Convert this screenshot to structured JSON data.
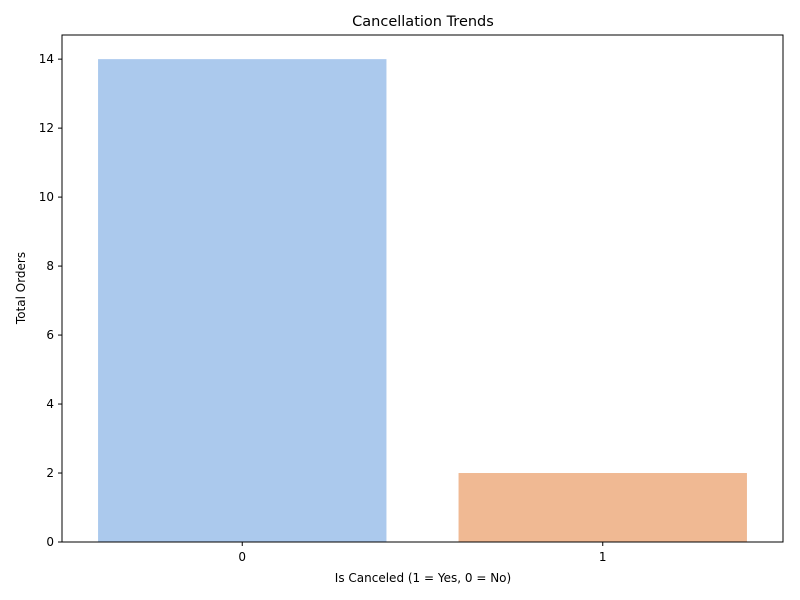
{
  "chart_data": {
    "type": "bar",
    "title": "Cancellation Trends",
    "xlabel": "Is Canceled (1 = Yes, 0 = No)",
    "ylabel": "Total Orders",
    "categories": [
      "0",
      "1"
    ],
    "values": [
      14,
      2
    ],
    "colors": [
      "#abc9ed",
      "#f0b993"
    ],
    "ylim": [
      0,
      14.7
    ],
    "yticks": [
      0,
      2,
      4,
      6,
      8,
      10,
      12,
      14
    ],
    "grid": false,
    "legend": "none"
  }
}
